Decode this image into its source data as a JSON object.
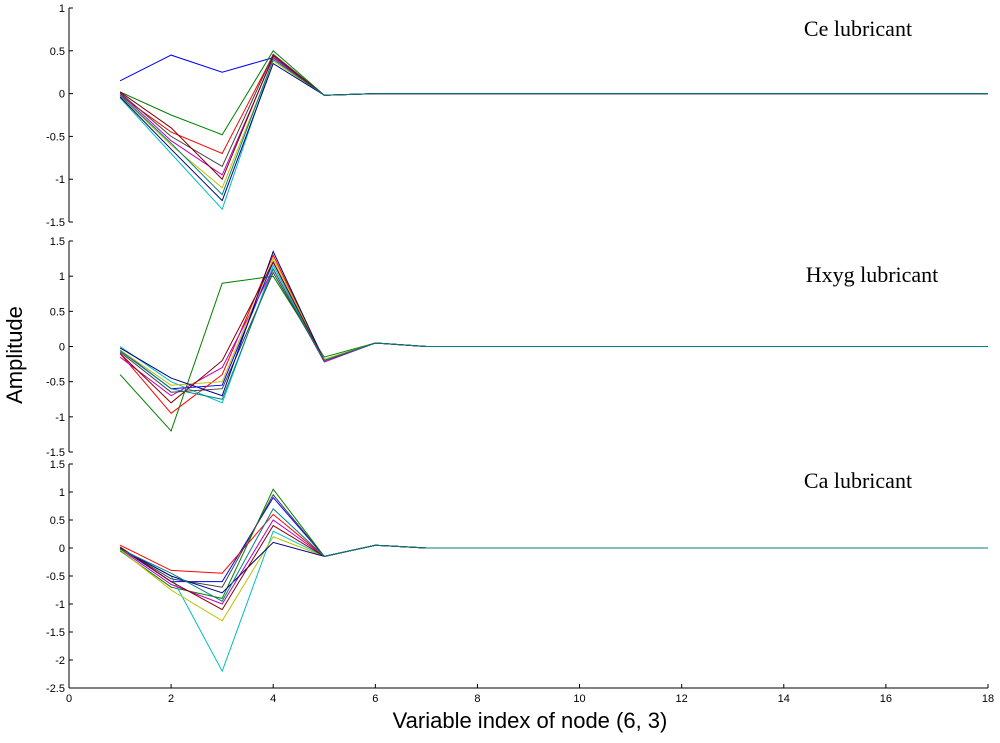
{
  "chart_data": {
    "type": "line",
    "xlabel": "Variable index of node (6, 3)",
    "ylabel": "Amplitude",
    "x": [
      1,
      2,
      3,
      4,
      5,
      6,
      7,
      8,
      9,
      10,
      11,
      12,
      13,
      14,
      15,
      16,
      17,
      18
    ],
    "xlim": [
      0,
      18
    ],
    "xticks": [
      "0",
      "2",
      "4",
      "6",
      "8",
      "10",
      "12",
      "14",
      "16",
      "18"
    ],
    "series_colors": [
      "#0000ff",
      "#008000",
      "#ff0000",
      "#00bfbf",
      "#bf00bf",
      "#bfbf00",
      "#404040",
      "#000080",
      "#800000",
      "#008080"
    ],
    "panels": [
      {
        "title": "Ce lubricant",
        "ylim": [
          -1.5,
          1
        ],
        "yticks": [
          "1",
          "0.5",
          "0",
          "-0.5",
          "-1",
          "-1.5"
        ],
        "series": [
          {
            "values": [
              0.15,
              0.45,
              0.25,
              0.42,
              -0.02,
              0.0,
              0,
              0,
              0,
              0,
              0,
              0,
              0,
              0,
              0,
              0,
              0,
              0
            ]
          },
          {
            "values": [
              0.02,
              -0.25,
              -0.48,
              0.5,
              -0.02,
              0.0,
              0,
              0,
              0,
              0,
              0,
              0,
              0,
              0,
              0,
              0,
              0,
              0
            ]
          },
          {
            "values": [
              -0.02,
              -0.45,
              -0.7,
              0.45,
              -0.02,
              0.0,
              0,
              0,
              0,
              0,
              0,
              0,
              0,
              0,
              0,
              0,
              0,
              0
            ]
          },
          {
            "values": [
              -0.05,
              -0.7,
              -1.35,
              0.4,
              -0.02,
              0.0,
              0,
              0,
              0,
              0,
              0,
              0,
              0,
              0,
              0,
              0,
              0,
              0
            ]
          },
          {
            "values": [
              0.0,
              -0.55,
              -0.95,
              0.42,
              -0.02,
              0.0,
              0,
              0,
              0,
              0,
              0,
              0,
              0,
              0,
              0,
              0,
              0,
              0
            ]
          },
          {
            "values": [
              -0.03,
              -0.6,
              -1.1,
              0.38,
              -0.02,
              0.0,
              0,
              0,
              0,
              0,
              0,
              0,
              0,
              0,
              0,
              0,
              0,
              0
            ]
          },
          {
            "values": [
              0.01,
              -0.5,
              -0.85,
              0.46,
              -0.02,
              0.0,
              0,
              0,
              0,
              0,
              0,
              0,
              0,
              0,
              0,
              0,
              0,
              0
            ]
          },
          {
            "values": [
              -0.04,
              -0.65,
              -1.25,
              0.35,
              -0.02,
              0.0,
              0,
              0,
              0,
              0,
              0,
              0,
              0,
              0,
              0,
              0,
              0,
              0
            ]
          },
          {
            "values": [
              0.02,
              -0.4,
              -1.0,
              0.44,
              -0.02,
              0.0,
              0,
              0,
              0,
              0,
              0,
              0,
              0,
              0,
              0,
              0,
              0,
              0
            ]
          },
          {
            "values": [
              -0.02,
              -0.58,
              -1.18,
              0.4,
              -0.02,
              0.0,
              0,
              0,
              0,
              0,
              0,
              0,
              0,
              0,
              0,
              0,
              0,
              0
            ]
          }
        ]
      },
      {
        "title": "Hxyg lubricant",
        "ylim": [
          -1.5,
          1.5
        ],
        "yticks": [
          "1.5",
          "1",
          "0.5",
          "0",
          "-0.5",
          "-1",
          "-1.5"
        ],
        "series": [
          {
            "values": [
              -0.05,
              -0.6,
              -0.55,
              1.2,
              -0.2,
              0.05,
              0,
              0,
              0,
              0,
              0,
              0,
              0,
              0,
              0,
              0,
              0,
              0
            ]
          },
          {
            "values": [
              -0.4,
              -1.2,
              0.9,
              1.0,
              -0.15,
              0.05,
              0,
              0,
              0,
              0,
              0,
              0,
              0,
              0,
              0,
              0,
              0,
              0
            ]
          },
          {
            "values": [
              -0.1,
              -0.95,
              -0.4,
              1.3,
              -0.2,
              0.05,
              0,
              0,
              0,
              0,
              0,
              0,
              0,
              0,
              0,
              0,
              0,
              0
            ]
          },
          {
            "values": [
              0.0,
              -0.5,
              -0.8,
              1.15,
              -0.2,
              0.05,
              0,
              0,
              0,
              0,
              0,
              0,
              0,
              0,
              0,
              0,
              0,
              0
            ]
          },
          {
            "values": [
              -0.15,
              -0.7,
              -0.3,
              1.1,
              -0.22,
              0.05,
              0,
              0,
              0,
              0,
              0,
              0,
              0,
              0,
              0,
              0,
              0,
              0
            ]
          },
          {
            "values": [
              -0.05,
              -0.55,
              -0.5,
              1.25,
              -0.18,
              0.05,
              0,
              0,
              0,
              0,
              0,
              0,
              0,
              0,
              0,
              0,
              0,
              0
            ]
          },
          {
            "values": [
              -0.08,
              -0.65,
              -0.6,
              1.05,
              -0.2,
              0.05,
              0,
              0,
              0,
              0,
              0,
              0,
              0,
              0,
              0,
              0,
              0,
              0
            ]
          },
          {
            "values": [
              -0.02,
              -0.45,
              -0.7,
              1.35,
              -0.2,
              0.05,
              0,
              0,
              0,
              0,
              0,
              0,
              0,
              0,
              0,
              0,
              0,
              0
            ]
          },
          {
            "values": [
              -0.1,
              -0.8,
              -0.2,
              1.2,
              -0.2,
              0.05,
              0,
              0,
              0,
              0,
              0,
              0,
              0,
              0,
              0,
              0,
              0,
              0
            ]
          },
          {
            "values": [
              -0.06,
              -0.6,
              -0.75,
              1.1,
              -0.2,
              0.05,
              0,
              0,
              0,
              0,
              0,
              0,
              0,
              0,
              0,
              0,
              0,
              0
            ]
          }
        ]
      },
      {
        "title": "Ca lubricant",
        "ylim": [
          -2.5,
          1.5
        ],
        "yticks": [
          "1.5",
          "1",
          "0.5",
          "0",
          "-0.5",
          "-1",
          "-1.5",
          "-2",
          "-2.5"
        ],
        "series": [
          {
            "values": [
              0.0,
              -0.6,
              -0.6,
              0.9,
              -0.15,
              0.05,
              0,
              0,
              0,
              0,
              0,
              0,
              0,
              0,
              0,
              0,
              0,
              0
            ]
          },
          {
            "values": [
              -0.05,
              -0.7,
              -0.9,
              1.05,
              -0.15,
              0.05,
              0,
              0,
              0,
              0,
              0,
              0,
              0,
              0,
              0,
              0,
              0,
              0
            ]
          },
          {
            "values": [
              0.05,
              -0.4,
              -0.45,
              0.6,
              -0.15,
              0.05,
              0,
              0,
              0,
              0,
              0,
              0,
              0,
              0,
              0,
              0,
              0,
              0
            ]
          },
          {
            "values": [
              0.0,
              -0.5,
              -2.2,
              0.3,
              -0.15,
              0.05,
              0,
              0,
              0,
              0,
              0,
              0,
              0,
              0,
              0,
              0,
              0,
              0
            ]
          },
          {
            "values": [
              -0.02,
              -0.65,
              -1.0,
              0.5,
              -0.15,
              0.05,
              0,
              0,
              0,
              0,
              0,
              0,
              0,
              0,
              0,
              0,
              0,
              0
            ]
          },
          {
            "values": [
              -0.03,
              -0.75,
              -1.3,
              0.2,
              -0.15,
              0.05,
              0,
              0,
              0,
              0,
              0,
              0,
              0,
              0,
              0,
              0,
              0,
              0
            ]
          },
          {
            "values": [
              0.0,
              -0.55,
              -0.7,
              0.95,
              -0.15,
              0.05,
              0,
              0,
              0,
              0,
              0,
              0,
              0,
              0,
              0,
              0,
              0,
              0
            ]
          },
          {
            "values": [
              -0.01,
              -0.5,
              -0.8,
              0.1,
              -0.15,
              0.05,
              0,
              0,
              0,
              0,
              0,
              0,
              0,
              0,
              0,
              0,
              0,
              0
            ]
          },
          {
            "values": [
              0.02,
              -0.6,
              -1.1,
              0.4,
              -0.15,
              0.05,
              0,
              0,
              0,
              0,
              0,
              0,
              0,
              0,
              0,
              0,
              0,
              0
            ]
          },
          {
            "values": [
              -0.02,
              -0.45,
              -0.95,
              0.7,
              -0.15,
              0.05,
              0,
              0,
              0,
              0,
              0,
              0,
              0,
              0,
              0,
              0,
              0,
              0
            ]
          }
        ]
      }
    ]
  }
}
